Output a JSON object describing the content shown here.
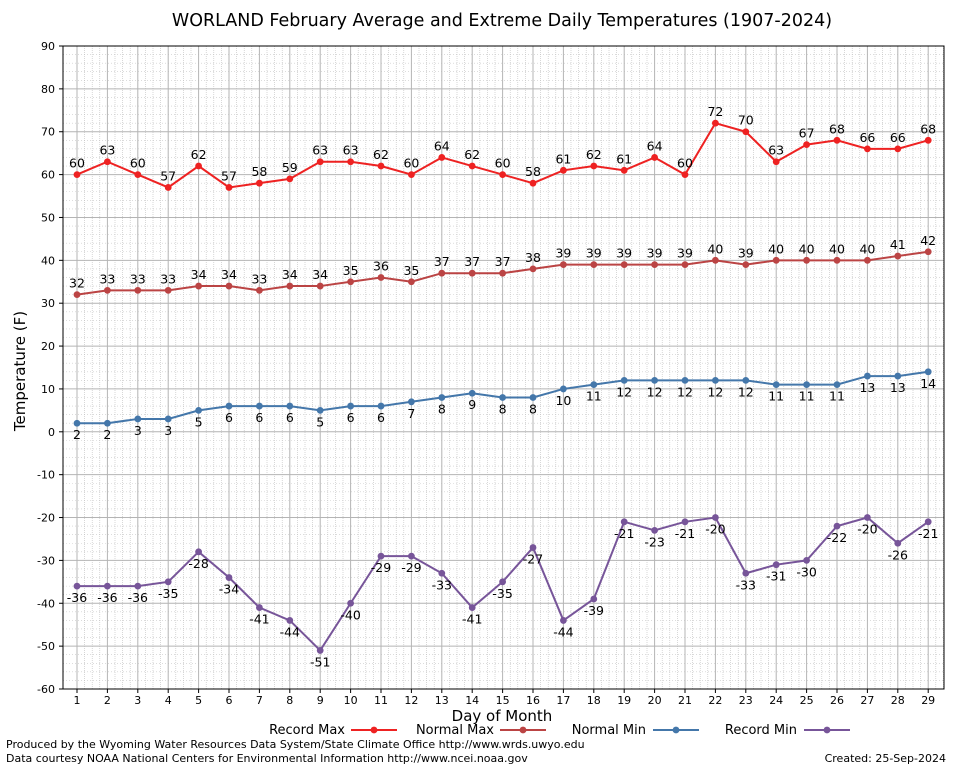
{
  "chart_data": {
    "type": "line",
    "title": "WORLAND February Average and Extreme Daily Temperatures (1907-2024)",
    "xlabel": "Day of Month",
    "ylabel": "Temperature (F)",
    "ylim": [
      -60,
      90
    ],
    "yticks": [
      -60,
      -50,
      -40,
      -30,
      -20,
      -10,
      0,
      10,
      20,
      30,
      40,
      50,
      60,
      70,
      80,
      90
    ],
    "x": [
      1,
      2,
      3,
      4,
      5,
      6,
      7,
      8,
      9,
      10,
      11,
      12,
      13,
      14,
      15,
      16,
      17,
      18,
      19,
      20,
      21,
      22,
      23,
      24,
      25,
      26,
      27,
      28,
      29
    ],
    "grid": true,
    "legend_position": "bottom",
    "series": [
      {
        "name": "Record Max",
        "color": "#ee2222",
        "label_position": "above",
        "values": [
          60,
          63,
          60,
          57,
          62,
          57,
          58,
          59,
          63,
          63,
          62,
          60,
          64,
          62,
          60,
          58,
          61,
          62,
          61,
          64,
          60,
          72,
          70,
          63,
          67,
          68,
          66,
          66,
          68
        ]
      },
      {
        "name": "Normal Max",
        "color": "#bb4444",
        "label_position": "above",
        "values": [
          32,
          33,
          33,
          33,
          34,
          34,
          33,
          34,
          34,
          35,
          36,
          35,
          37,
          37,
          37,
          38,
          39,
          39,
          39,
          39,
          39,
          40,
          39,
          40,
          40,
          40,
          40,
          41,
          42
        ]
      },
      {
        "name": "Normal Min",
        "color": "#4477aa",
        "label_position": "below",
        "values": [
          2,
          2,
          3,
          3,
          5,
          6,
          6,
          6,
          5,
          6,
          6,
          7,
          8,
          9,
          8,
          8,
          10,
          11,
          12,
          12,
          12,
          12,
          12,
          11,
          11,
          11,
          13,
          13,
          14
        ]
      },
      {
        "name": "Record Min",
        "color": "#775599",
        "label_position": "below",
        "values": [
          -36,
          -36,
          -36,
          -35,
          -28,
          -34,
          -41,
          -44,
          -51,
          -40,
          -29,
          -29,
          -33,
          -41,
          -35,
          -27,
          -44,
          -39,
          -21,
          -23,
          -21,
          -20,
          -33,
          -31,
          -30,
          -22,
          -20,
          -26,
          -21
        ]
      }
    ]
  },
  "footer": {
    "line1": "Produced by the Wyoming Water Resources Data System/State Climate Office http://www.wrds.uwyo.edu",
    "line2": "Data courtesy NOAA National Centers for Environmental Information http://www.ncei.noaa.gov",
    "created": "Created:  25-Sep-2024"
  }
}
